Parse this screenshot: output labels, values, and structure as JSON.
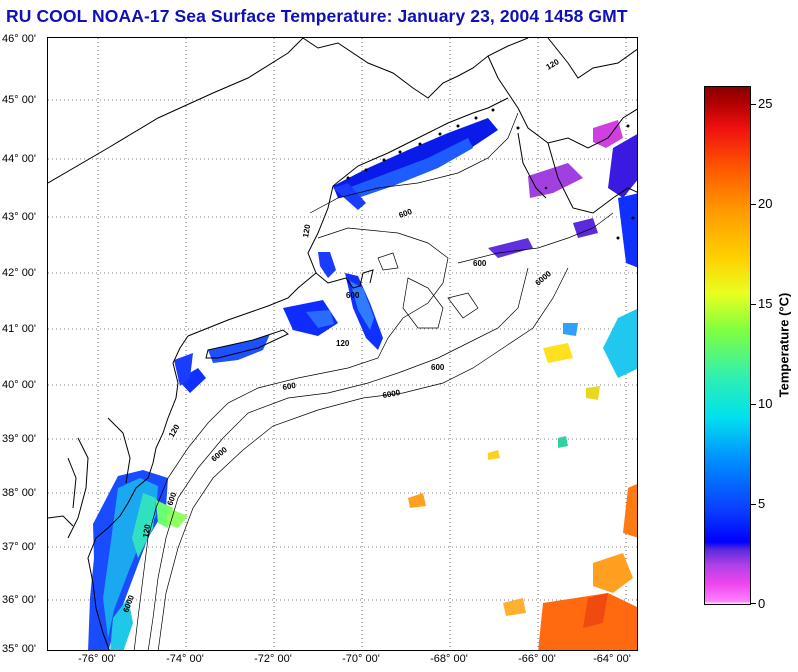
{
  "title": "RU COOL  NOAA-17  Sea Surface Temperature:  January 23, 2004 1458 GMT",
  "lat_labels": [
    "46° 00'",
    "45° 00'",
    "44° 00'",
    "43° 00'",
    "42° 00'",
    "41° 00'",
    "40° 00'",
    "39° 00'",
    "38° 00'",
    "37° 00'",
    "36° 00'",
    "35° 00'"
  ],
  "lon_labels": [
    "-76° 00'",
    "-74° 00'",
    "-72° 00'",
    "-70° 00'",
    "-68° 00'",
    "-66° 00'",
    "-64° 00'"
  ],
  "contour_labels": [
    "120",
    "600",
    "6000"
  ],
  "colorbar": {
    "label": "Temperature (°C)",
    "ticks": [
      "25",
      "20",
      "15",
      "10",
      "5",
      "0"
    ],
    "range": [
      0,
      26
    ]
  },
  "colors": {
    "title": "#1010b8",
    "land": "#ffffff",
    "coast": "#000000"
  }
}
